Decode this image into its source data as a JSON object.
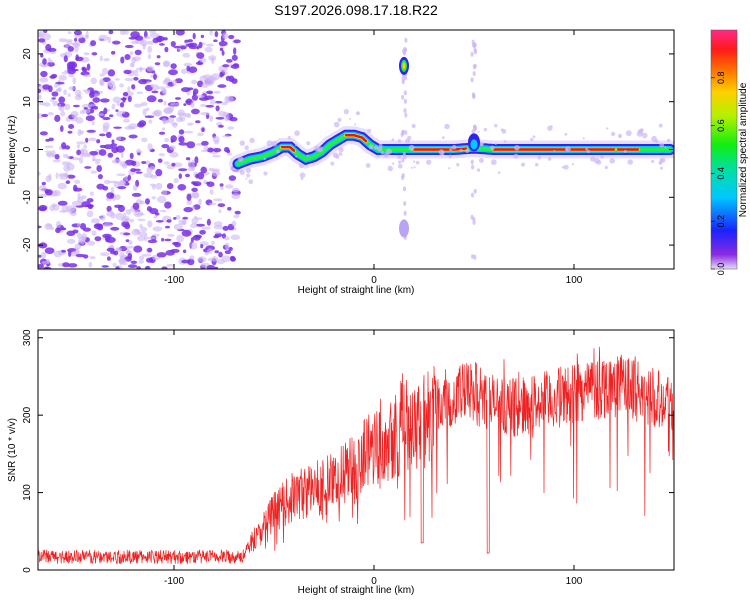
{
  "title": "S197.2026.098.17.18.R22",
  "colors": {
    "snr_line": "#ee2222",
    "plot_frame": "#000000",
    "scatter": "#7a2fe6",
    "scatter_light": "#cdb6f5"
  },
  "chart_data": [
    {
      "type": "heatmap",
      "name": "spectrogram",
      "xlabel": "Height of straight line (km)",
      "ylabel": "Frequency (Hz)",
      "xlim": [
        -168,
        150
      ],
      "ylim": [
        -25,
        25
      ],
      "xticks": [
        -100,
        0,
        100
      ],
      "xtick_labels": [
        "-100",
        "0",
        "100"
      ],
      "yticks": [
        -20,
        -10,
        0,
        10,
        20
      ],
      "ytick_labels": [
        "-20",
        "-10",
        "0",
        "10",
        "20"
      ],
      "noise_region_x": [
        -168,
        -68
      ],
      "ridge": {
        "x": [
          -68,
          -62,
          -56,
          -50,
          -46,
          -42,
          -38,
          -34,
          -30,
          -26,
          -22,
          -18,
          -14,
          -10,
          -6,
          -2,
          2,
          6,
          10,
          14,
          20,
          30,
          40,
          50,
          60,
          80,
          100,
          120,
          140,
          148
        ],
        "y": [
          -3,
          -2,
          -1.5,
          -0.5,
          0.5,
          0.5,
          -1,
          -2,
          -1.5,
          -0.5,
          1,
          2,
          3,
          3,
          2.5,
          1,
          0,
          0,
          0,
          0,
          0,
          0,
          0,
          0.3,
          0,
          0,
          0,
          0,
          0,
          0
        ]
      },
      "features": [
        {
          "label": "spike",
          "x": 15,
          "y": 17.5
        },
        {
          "label": "spike",
          "x": 15,
          "y": -16.5
        },
        {
          "label": "blob",
          "x": 50,
          "y": 1.5
        }
      ],
      "colorbar": {
        "label": "Normalized spectral amplitude",
        "ticks": [
          0.0,
          0.2,
          0.4,
          0.6,
          0.8
        ],
        "tick_labels": [
          "0.0",
          "0.2",
          "0.4",
          "0.6",
          "0.8"
        ],
        "range": [
          0,
          1
        ]
      }
    },
    {
      "type": "line",
      "name": "snr",
      "xlabel": "Height of straight line (km)",
      "ylabel": "SNR (10 * v/v)",
      "xlim": [
        -168,
        150
      ],
      "ylim": [
        0,
        310
      ],
      "xticks": [
        -100,
        0,
        100
      ],
      "xtick_labels": [
        "-100",
        "0",
        "100"
      ],
      "yticks": [
        0,
        100,
        200,
        300
      ],
      "ytick_labels": [
        "0",
        "100",
        "200",
        "300"
      ],
      "series": [
        {
          "name": "SNR",
          "x_envelope": [
            -168,
            -140,
            -110,
            -80,
            -65,
            -60,
            -50,
            -40,
            -30,
            -20,
            -10,
            0,
            10,
            20,
            25,
            30,
            40,
            50,
            60,
            70,
            80,
            90,
            100,
            110,
            120,
            130,
            140,
            150
          ],
          "mean_envelope": [
            17,
            17,
            17,
            17,
            18,
            40,
            75,
            95,
            105,
            115,
            130,
            165,
            180,
            200,
            190,
            215,
            225,
            230,
            215,
            210,
            215,
            220,
            230,
            235,
            240,
            235,
            225,
            218
          ],
          "dips": [
            {
              "x": 24,
              "y": 35
            },
            {
              "x": 57,
              "y": 22
            }
          ]
        }
      ]
    }
  ]
}
